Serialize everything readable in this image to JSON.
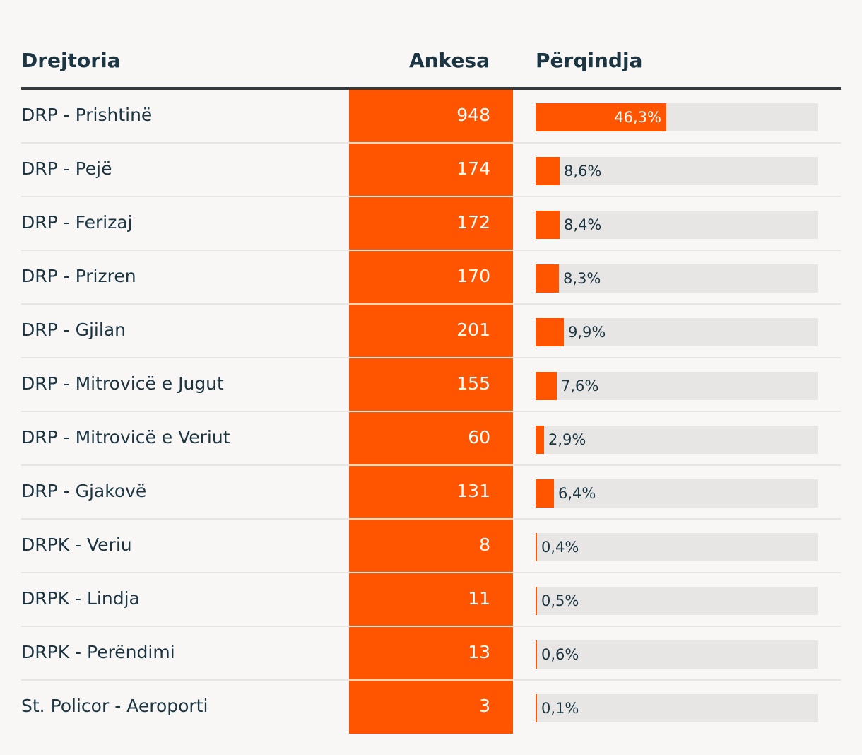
{
  "header": {
    "col_name": "Drejtoria",
    "col_count": "Ankesa",
    "col_share": "Përqindja"
  },
  "colors": {
    "accent": "#ff5500",
    "text": "#1c3542",
    "track": "#e7e6e4",
    "background": "#f8f7f5"
  },
  "chart_data": {
    "type": "table",
    "columns": [
      "Drejtoria",
      "Ankesa",
      "Përqindja"
    ],
    "rows": [
      {
        "name": "DRP - Prishtinë",
        "count": "948",
        "share": 46.3,
        "share_label": "46,3%"
      },
      {
        "name": "DRP - Pejë",
        "count": "174",
        "share": 8.6,
        "share_label": "8,6%"
      },
      {
        "name": "DRP - Ferizaj",
        "count": "172",
        "share": 8.4,
        "share_label": "8,4%"
      },
      {
        "name": "DRP - Prizren",
        "count": "170",
        "share": 8.3,
        "share_label": "8,3%"
      },
      {
        "name": "DRP - Gjilan",
        "count": "201",
        "share": 9.9,
        "share_label": "9,9%"
      },
      {
        "name": "DRP - Mitrovicë e Jugut",
        "count": "155",
        "share": 7.6,
        "share_label": "7,6%"
      },
      {
        "name": "DRP - Mitrovicë e Veriut",
        "count": "60",
        "share": 2.9,
        "share_label": "2,9%"
      },
      {
        "name": "DRP - Gjakovë",
        "count": "131",
        "share": 6.4,
        "share_label": "6,4%"
      },
      {
        "name": "DRPK - Veriu",
        "count": "8",
        "share": 0.4,
        "share_label": "0,4%"
      },
      {
        "name": "DRPK - Lindja",
        "count": "11",
        "share": 0.5,
        "share_label": "0,5%"
      },
      {
        "name": "DRPK - Perëndimi",
        "count": "13",
        "share": 0.6,
        "share_label": "0,6%"
      },
      {
        "name": "St. Policor - Aeroporti",
        "count": "3",
        "share": 0.1,
        "share_label": "0,1%"
      }
    ],
    "share_scale_max": 100
  }
}
